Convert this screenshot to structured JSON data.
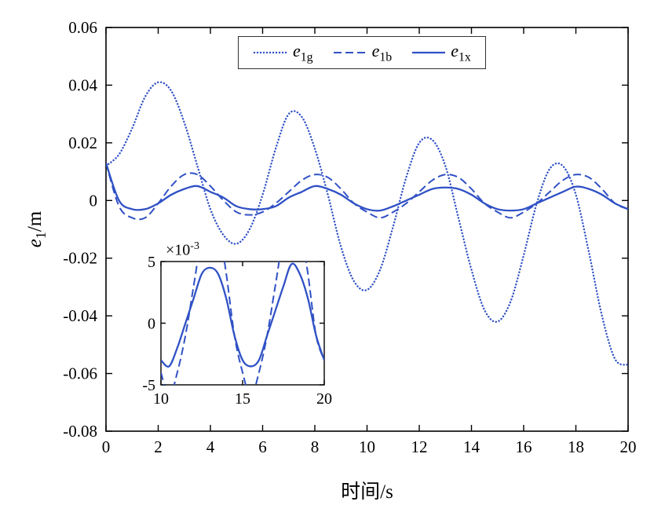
{
  "chart_data": {
    "type": "line",
    "title": "",
    "xlabel": "时间/s",
    "ylabel": {
      "base": "e",
      "sub": "1",
      "suffix": "/m"
    },
    "xlim": [
      0,
      20
    ],
    "ylim": [
      -0.08,
      0.06
    ],
    "x_ticks": [
      0,
      2,
      4,
      6,
      8,
      10,
      12,
      14,
      16,
      18,
      20
    ],
    "y_ticks": [
      "0.06",
      "0.04",
      "0.02",
      "0",
      "-0.02",
      "-0.04",
      "-0.06",
      "-0.08"
    ],
    "y_tick_values": [
      0.06,
      0.04,
      0.02,
      0,
      -0.02,
      -0.04,
      -0.06,
      -0.08
    ],
    "grid": false,
    "legend": {
      "position": "top-center",
      "entries": [
        {
          "base": "e",
          "sub": "1g",
          "style": "dotted"
        },
        {
          "base": "e",
          "sub": "1b",
          "style": "dashed"
        },
        {
          "base": "e",
          "sub": "1x",
          "style": "solid"
        }
      ]
    },
    "colors": {
      "line": "#3051c5",
      "axis": "#000000"
    },
    "x": [
      0,
      0.5,
      1,
      1.5,
      2,
      2.5,
      3,
      3.5,
      4,
      4.5,
      5,
      5.5,
      6,
      6.5,
      7,
      7.5,
      8,
      8.5,
      9,
      9.5,
      10,
      10.5,
      11,
      11.5,
      12,
      12.5,
      13,
      13.5,
      14,
      14.5,
      15,
      15.5,
      16,
      16.5,
      17,
      17.5,
      18,
      18.5,
      19,
      19.5,
      20
    ],
    "series": [
      {
        "name": "e1g",
        "style": "dotted",
        "y": [
          0.012,
          0.016,
          0.025,
          0.036,
          0.041,
          0.038,
          0.027,
          0.012,
          -0.003,
          -0.012,
          -0.015,
          -0.01,
          0.002,
          0.018,
          0.03,
          0.029,
          0.018,
          0.002,
          -0.016,
          -0.028,
          -0.031,
          -0.024,
          -0.009,
          0.008,
          0.02,
          0.021,
          0.012,
          -0.006,
          -0.024,
          -0.038,
          -0.042,
          -0.035,
          -0.019,
          -0.001,
          0.011,
          0.012,
          0.002,
          -0.018,
          -0.04,
          -0.055,
          -0.057
        ]
      },
      {
        "name": "e1b",
        "style": "dashed",
        "y": [
          0.013,
          -0.002,
          -0.006,
          -0.006,
          -0.001,
          0.005,
          0.009,
          0.009,
          0.005,
          0.0,
          -0.004,
          -0.005,
          -0.004,
          -0.001,
          0.003,
          0.007,
          0.009,
          0.008,
          0.004,
          -0.001,
          -0.004,
          -0.006,
          -0.004,
          -0.001,
          0.003,
          0.007,
          0.009,
          0.008,
          0.004,
          -0.001,
          -0.004,
          -0.006,
          -0.004,
          -0.001,
          0.003,
          0.007,
          0.009,
          0.008,
          0.004,
          -0.001,
          -0.003
        ]
      },
      {
        "name": "e1x",
        "style": "solid",
        "y": [
          0.013,
          0.0,
          -0.003,
          -0.003,
          -0.001,
          0.002,
          0.004,
          0.005,
          0.003,
          0.001,
          -0.002,
          -0.003,
          -0.003,
          -0.002,
          0.001,
          0.003,
          0.005,
          0.004,
          0.002,
          -0.001,
          -0.003,
          -0.0035,
          -0.002,
          0.0,
          0.002,
          0.004,
          0.0045,
          0.004,
          0.002,
          -0.001,
          -0.003,
          -0.0035,
          -0.003,
          -0.001,
          0.001,
          0.003,
          0.0048,
          0.004,
          0.002,
          -0.001,
          -0.003
        ]
      }
    ],
    "inset": {
      "xlim": [
        10,
        20
      ],
      "ylim": [
        -0.005,
        0.005
      ],
      "x_ticks": [
        10,
        15,
        20
      ],
      "y_ticks": [
        "5",
        "0",
        "-5"
      ],
      "y_tick_values": [
        0.005,
        0,
        -0.005
      ],
      "multiplier": {
        "prefix": "×10",
        "exp": "-3"
      },
      "series_shown": [
        "e1b",
        "e1x"
      ]
    }
  }
}
